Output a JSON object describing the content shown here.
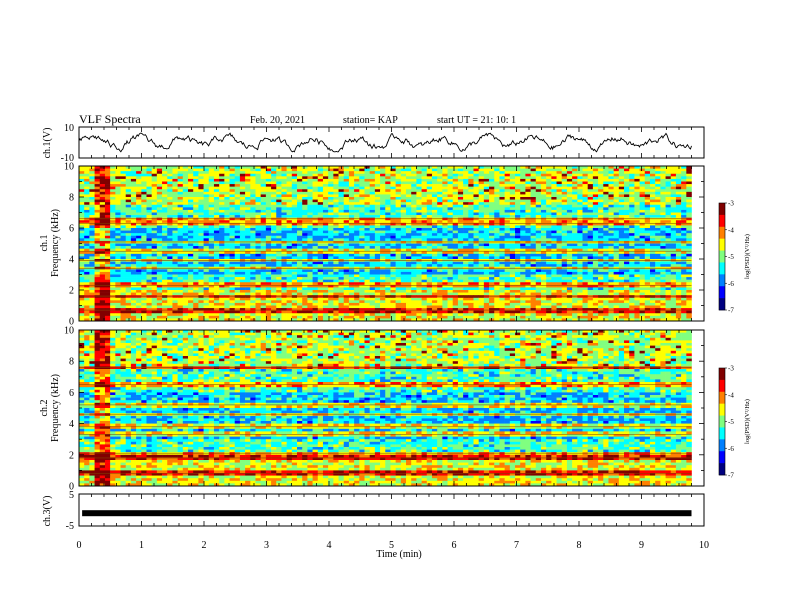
{
  "header": {
    "title": "VLF Spectra",
    "date": "Feb. 20, 2021",
    "station": "station= KAP",
    "start": "start UT = 21: 10: 1"
  },
  "colorbar": {
    "label": "log(PSD)(V²/Hz)",
    "ticks": [
      "-3",
      "-4",
      "-5",
      "-6",
      "-7"
    ],
    "colors": [
      "#800000",
      "#ff0000",
      "#ff8000",
      "#ffff00",
      "#80ff80",
      "#00ffff",
      "#0080ff",
      "#0000ff",
      "#000080"
    ]
  },
  "chart_data": [
    {
      "type": "line",
      "title": "",
      "ylabel": "ch.1(V)",
      "ylim": [
        -10,
        10
      ],
      "yticks": [
        "10",
        "-10"
      ],
      "xlim": [
        0,
        10
      ],
      "description_values": {
        "mean": 0,
        "min": -6,
        "max": 6
      },
      "color": "#000000"
    },
    {
      "type": "heatmap",
      "ylabel": "Frequency (kHz)",
      "channel_label": "ch.1",
      "ylim": [
        0,
        10
      ],
      "yticks": [
        "0",
        "2",
        "4",
        "6",
        "8",
        "10"
      ],
      "xlim": [
        0,
        9.8
      ],
      "zlim": [
        -7,
        -3
      ],
      "banded_frequencies_khz": [
        0.7,
        1.6,
        2.3,
        3.4,
        3.9,
        4.5,
        5.1,
        6.3,
        6.6
      ]
    },
    {
      "type": "heatmap",
      "ylabel": "Frequency (kHz)",
      "channel_label": "ch.2",
      "ylim": [
        0,
        10
      ],
      "yticks": [
        "0",
        "2",
        "4",
        "6",
        "8",
        "10"
      ],
      "xlim": [
        0,
        9.8
      ],
      "zlim": [
        -7,
        -3
      ],
      "banded_frequencies_khz": [
        0.8,
        1.8,
        2.1,
        3.3,
        3.8,
        4.6,
        5.2,
        6.5,
        7.6
      ]
    },
    {
      "type": "line",
      "ylabel": "ch.3(V)",
      "ylim": [
        -5,
        5
      ],
      "yticks": [
        "5",
        "-5"
      ],
      "xlim": [
        0,
        10
      ],
      "baseline_value": -1,
      "color": "#000000"
    }
  ],
  "xaxis": {
    "label": "Time (min)",
    "ticks": [
      "0",
      "1",
      "2",
      "3",
      "4",
      "5",
      "6",
      "7",
      "8",
      "9",
      "10"
    ]
  }
}
